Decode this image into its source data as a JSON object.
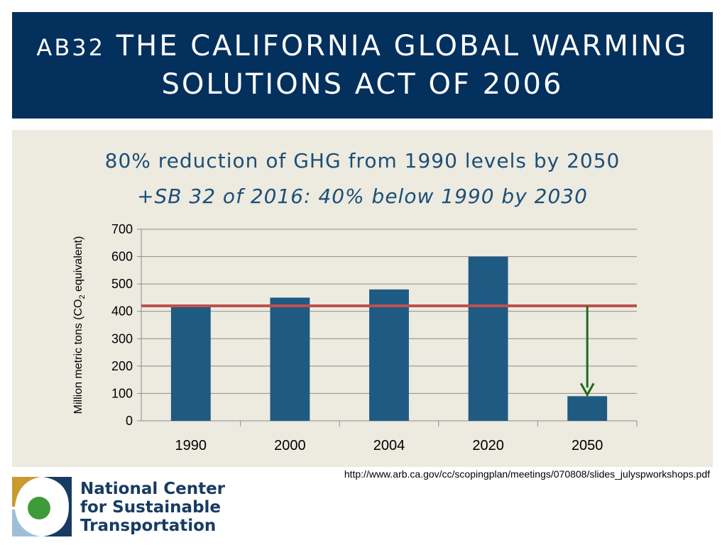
{
  "title": {
    "prefix": "AB32",
    "line1": "The California Global Warming",
    "line2": "Solutions Act of 2006"
  },
  "subtitle": {
    "line1": "80% reduction of GHG from 1990 levels by 2050",
    "line2": "+SB 32 of 2016:  40% below 1990 by 2030"
  },
  "chart_data": {
    "type": "bar",
    "categories": [
      "1990",
      "2000",
      "2004",
      "2020",
      "2050"
    ],
    "values": [
      420,
      450,
      480,
      600,
      90
    ],
    "ylabel_main": "Million metric tons (CO",
    "ylabel_sub": "2",
    "ylabel_end": " equivalent)",
    "ylim": [
      0,
      700
    ],
    "yticks": [
      0,
      100,
      200,
      300,
      400,
      500,
      600,
      700
    ],
    "grid": true,
    "reference_line": {
      "value": 420,
      "color": "#c0504d"
    },
    "arrow": {
      "category": "2050",
      "from": 420,
      "to": 90,
      "color": "#1e6a1e"
    },
    "bar_color": "#1f5a82"
  },
  "source_url": "http://www.arb.ca.gov/cc/scopingplan/meetings/070808/slides_julyspworkshops.pdf",
  "logo": {
    "line1": "National Center",
    "line2": "for Sustainable",
    "line3": "Transportation"
  }
}
